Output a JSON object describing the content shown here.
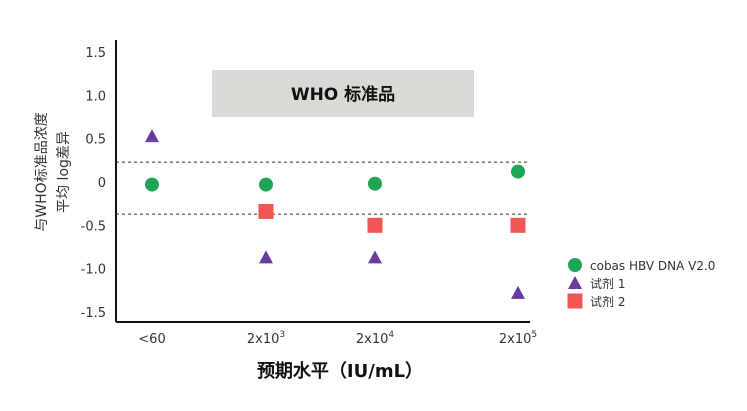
{
  "chart_data": {
    "type": "scatter",
    "banner": "WHO 标准品",
    "ylabel_lines": [
      "与WHO标准品浓度",
      "平均 log差异"
    ],
    "xlabel": "预期水平（IU/mL）",
    "categories": [
      "<60",
      "2x10",
      "2x10",
      "2x10"
    ],
    "category_sup": [
      "",
      "3",
      "4",
      "5"
    ],
    "yticks": [
      "1.5",
      "1.0",
      "0.5",
      "0",
      "-0.5",
      "-1.0",
      "-1.5"
    ],
    "ylim": [
      -1.5,
      1.5
    ],
    "reference_lines": [
      0.23,
      -0.37
    ],
    "series": [
      {
        "name": "cobas HBV DNA V2.0",
        "marker": "circle",
        "color": "#1fa556",
        "values": [
          -0.03,
          -0.03,
          -0.02,
          0.12
        ]
      },
      {
        "name": "试剂 1",
        "marker": "triangle",
        "color": "#6b3aa0",
        "values": [
          0.53,
          -0.87,
          -0.87,
          -1.28
        ]
      },
      {
        "name": "试剂 2",
        "marker": "square",
        "color": "#f25555",
        "values": [
          null,
          -0.34,
          -0.5,
          -0.5
        ]
      }
    ],
    "grid": false,
    "legend_position": "right"
  }
}
